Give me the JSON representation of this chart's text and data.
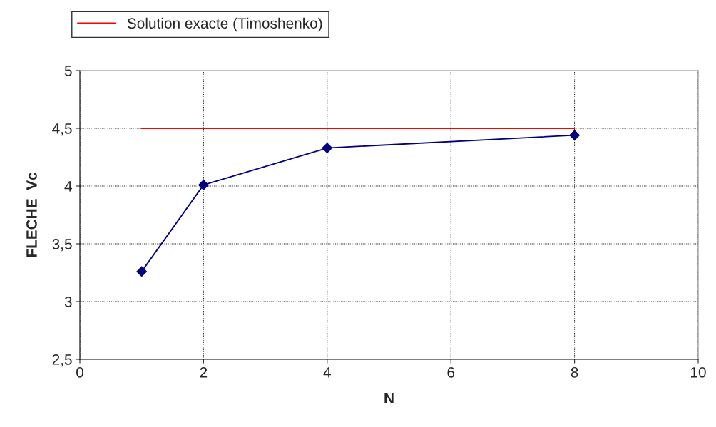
{
  "chart_data": {
    "type": "line",
    "xlabel": "N",
    "ylabel": "FLECHE  Vc",
    "series": [
      {
        "color": "#000080",
        "x": [
          1,
          2,
          4,
          8
        ],
        "values": [
          3.26,
          4.01,
          4.33,
          4.44
        ],
        "marker": "diamond"
      },
      {
        "name": "Solution exacte (Timoshenko)",
        "color": "#ff0000",
        "x": [
          1,
          8
        ],
        "values": [
          4.5,
          4.5
        ],
        "marker": "none"
      }
    ],
    "xlim": [
      0,
      10
    ],
    "xticks": [
      0,
      2,
      4,
      6,
      8,
      10
    ],
    "ylim": [
      2.5,
      5
    ],
    "yticks": [
      {
        "value": 2.5,
        "label": "2,5"
      },
      3,
      {
        "value": 3.5,
        "label": "3,5"
      },
      4,
      {
        "value": 4.5,
        "label": "4,5"
      },
      5
    ],
    "grid": true,
    "legend": "top left",
    "line_style": "solid"
  }
}
